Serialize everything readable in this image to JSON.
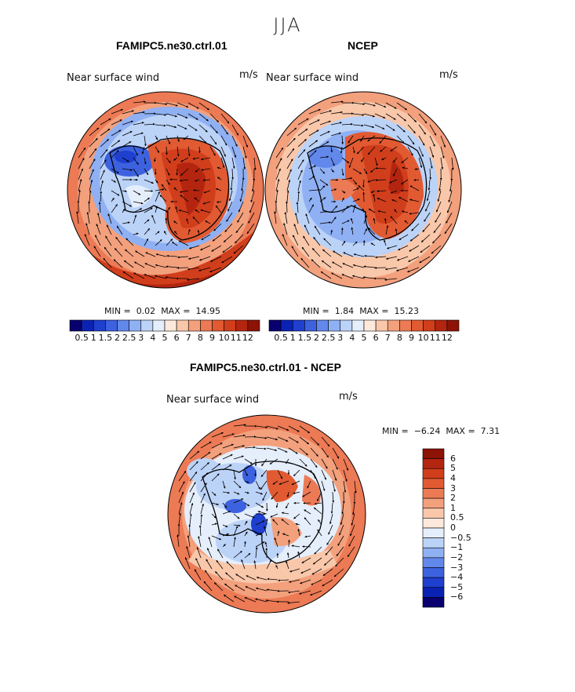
{
  "season": "JJA",
  "colors": {
    "abs_scale": [
      "#08006f",
      "#0a22b4",
      "#1f3fcf",
      "#3d62df",
      "#6288ec",
      "#8fb0f3",
      "#bcd3f8",
      "#e5eefb",
      "#fde9dc",
      "#f9c7aa",
      "#f3a07d",
      "#ec7a55",
      "#e15a32",
      "#d13e1c",
      "#b42510",
      "#8c1306"
    ],
    "diff_scale": [
      "#08006f",
      "#0a22b4",
      "#1f3fcf",
      "#3d62df",
      "#6288ec",
      "#8fb0f3",
      "#bcd3f8",
      "#e5eefb",
      "#fde9dc",
      "#f9c7aa",
      "#f3a07d",
      "#ec7a55",
      "#e15a32",
      "#d13e1c",
      "#b42510",
      "#8c1306"
    ]
  },
  "panels": [
    {
      "title": "FAMIPC5.ne30.ctrl.01",
      "variable": "Near surface wind",
      "units": "m/s",
      "min_label": "MIN =",
      "min_value": "0.02",
      "max_label": "MAX =",
      "max_value": "14.95"
    },
    {
      "title": "NCEP",
      "variable": "Near surface wind",
      "units": "m/s",
      "min_label": "MIN =",
      "min_value": "1.84",
      "max_label": "MAX =",
      "max_value": "15.23"
    },
    {
      "title": "FAMIPC5.ne30.ctrl.01 - NCEP",
      "variable": "Near surface wind",
      "units": "m/s",
      "min_label": "MIN =",
      "min_value": "−6.24",
      "max_label": "MAX =",
      "max_value": "7.31"
    }
  ],
  "chart_data": [
    {
      "type": "heatmap",
      "projection": "polar stereographic, south pole",
      "title": "FAMIPC5.ne30.ctrl.01",
      "variable": "Near surface wind",
      "units": "m/s",
      "min": 0.02,
      "max": 14.95,
      "colorbar_levels": [
        0.5,
        1,
        1.5,
        2,
        2.5,
        3,
        4,
        5,
        6,
        7,
        8,
        9,
        10,
        11,
        12
      ],
      "colorbar_tick_labels": [
        "0.5",
        "1",
        "1.5",
        "2",
        "2.5",
        "3",
        "4",
        "5",
        "6",
        "7",
        "8",
        "9",
        "10",
        "11",
        "12"
      ],
      "colorbar_orientation": "horizontal"
    },
    {
      "type": "heatmap",
      "projection": "polar stereographic, south pole",
      "title": "NCEP",
      "variable": "Near surface wind",
      "units": "m/s",
      "min": 1.84,
      "max": 15.23,
      "colorbar_levels": [
        0.5,
        1,
        1.5,
        2,
        2.5,
        3,
        4,
        5,
        6,
        7,
        8,
        9,
        10,
        11,
        12
      ],
      "colorbar_tick_labels": [
        "0.5",
        "1",
        "1.5",
        "2",
        "2.5",
        "3",
        "4",
        "5",
        "6",
        "7",
        "8",
        "9",
        "10",
        "11",
        "12"
      ],
      "colorbar_orientation": "horizontal"
    },
    {
      "type": "heatmap",
      "projection": "polar stereographic, south pole",
      "title": "FAMIPC5.ne30.ctrl.01 - NCEP",
      "variable": "Near surface wind",
      "units": "m/s",
      "min": -6.24,
      "max": 7.31,
      "colorbar_levels": [
        -6,
        -5,
        -4,
        -3,
        -2,
        -1,
        -0.5,
        0,
        0.5,
        1,
        2,
        3,
        4,
        5,
        6
      ],
      "colorbar_tick_labels": [
        "6",
        "5",
        "4",
        "3",
        "2",
        "1",
        "0.5",
        "0",
        "−0.5",
        "−1",
        "−2",
        "−3",
        "−4",
        "−5",
        "−6"
      ],
      "colorbar_orientation": "vertical"
    }
  ]
}
